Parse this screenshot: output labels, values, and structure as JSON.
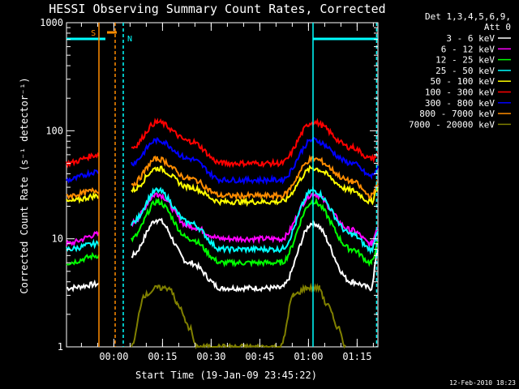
{
  "chart_data": {
    "type": "line",
    "title": "HESSI Observing Summary Count Rates, Corrected",
    "xlabel": "Start Time (19-Jan-09 23:45:22)",
    "ylabel": "Corrected Count Rate (s⁻¹ detector⁻¹)",
    "yscale": "log",
    "ylim": [
      1,
      1000
    ],
    "xlim_minutes": [
      0,
      96
    ],
    "y_ticks": [
      "1",
      "10",
      "100",
      "1000"
    ],
    "x_ticks": [
      {
        "label": "00:00",
        "minute": 14.6
      },
      {
        "label": "00:15",
        "minute": 29.6
      },
      {
        "label": "00:30",
        "minute": 44.6
      },
      {
        "label": "00:45",
        "minute": 59.6
      },
      {
        "label": "01:00",
        "minute": 74.6
      },
      {
        "label": "01:15",
        "minute": 89.6
      }
    ],
    "legend_header": [
      "Det 1,3,4,5,6,9,",
      "Att 0"
    ],
    "legend_position": "right-outside",
    "series": [
      {
        "name": "3 - 6 keV",
        "color": "#ffffff",
        "values": [
          [
            0,
            3.5
          ],
          [
            10,
            3.8
          ],
          [
            18,
            null
          ],
          [
            20,
            7
          ],
          [
            28,
            15
          ],
          [
            38,
            6
          ],
          [
            48,
            3.5
          ],
          [
            66,
            3.5
          ],
          [
            76,
            14
          ],
          [
            88,
            4
          ],
          [
            94,
            3.5
          ],
          [
            96,
            8
          ]
        ]
      },
      {
        "name": "6 - 12 keV",
        "color": "#ff00ff",
        "values": [
          [
            0,
            9
          ],
          [
            10,
            11
          ],
          [
            18,
            null
          ],
          [
            20,
            14
          ],
          [
            28,
            26
          ],
          [
            38,
            13
          ],
          [
            48,
            10
          ],
          [
            66,
            10
          ],
          [
            76,
            26
          ],
          [
            88,
            12
          ],
          [
            94,
            9
          ],
          [
            96,
            13
          ]
        ]
      },
      {
        "name": "12 - 25 keV",
        "color": "#00ff00",
        "values": [
          [
            0,
            6
          ],
          [
            10,
            7
          ],
          [
            18,
            null
          ],
          [
            20,
            10
          ],
          [
            28,
            22
          ],
          [
            38,
            10
          ],
          [
            48,
            6
          ],
          [
            66,
            6
          ],
          [
            76,
            22
          ],
          [
            88,
            8
          ],
          [
            94,
            6
          ],
          [
            96,
            9
          ]
        ]
      },
      {
        "name": "25 - 50 keV",
        "color": "#00ffff",
        "values": [
          [
            0,
            8
          ],
          [
            10,
            9
          ],
          [
            18,
            null
          ],
          [
            20,
            14
          ],
          [
            28,
            28
          ],
          [
            38,
            14
          ],
          [
            48,
            8
          ],
          [
            66,
            8
          ],
          [
            76,
            28
          ],
          [
            88,
            11
          ],
          [
            94,
            8
          ],
          [
            96,
            12
          ]
        ]
      },
      {
        "name": "50 - 100 keV",
        "color": "#ffff00",
        "values": [
          [
            0,
            22
          ],
          [
            10,
            25
          ],
          [
            18,
            null
          ],
          [
            20,
            28
          ],
          [
            28,
            45
          ],
          [
            38,
            30
          ],
          [
            48,
            22
          ],
          [
            66,
            22
          ],
          [
            76,
            45
          ],
          [
            88,
            28
          ],
          [
            94,
            22
          ],
          [
            96,
            30
          ]
        ]
      },
      {
        "name": "100 - 300 keV",
        "color": "#ff0000",
        "values": [
          [
            0,
            50
          ],
          [
            10,
            60
          ],
          [
            18,
            null
          ],
          [
            20,
            70
          ],
          [
            28,
            120
          ],
          [
            38,
            80
          ],
          [
            48,
            50
          ],
          [
            66,
            50
          ],
          [
            76,
            120
          ],
          [
            88,
            70
          ],
          [
            94,
            55
          ],
          [
            96,
            60
          ]
        ]
      },
      {
        "name": "300 - 800 keV",
        "color": "#0000ff",
        "values": [
          [
            0,
            35
          ],
          [
            10,
            42
          ],
          [
            18,
            null
          ],
          [
            20,
            50
          ],
          [
            28,
            82
          ],
          [
            38,
            55
          ],
          [
            48,
            35
          ],
          [
            66,
            35
          ],
          [
            76,
            82
          ],
          [
            88,
            50
          ],
          [
            94,
            38
          ],
          [
            96,
            45
          ]
        ]
      },
      {
        "name": "800 - 7000 keV",
        "color": "#ff8c00",
        "values": [
          [
            0,
            25
          ],
          [
            10,
            28
          ],
          [
            18,
            null
          ],
          [
            20,
            32
          ],
          [
            28,
            55
          ],
          [
            38,
            36
          ],
          [
            48,
            25
          ],
          [
            66,
            25
          ],
          [
            76,
            55
          ],
          [
            88,
            34
          ],
          [
            94,
            25
          ],
          [
            96,
            32
          ]
        ]
      },
      {
        "name": "7000 - 20000 keV",
        "color": "#808000",
        "values": [
          [
            20,
            1
          ],
          [
            24,
            3
          ],
          [
            28,
            3.5
          ],
          [
            32,
            3.5
          ],
          [
            34,
            2.5
          ],
          [
            38,
            1.5
          ],
          [
            40,
            1
          ],
          [
            66,
            1
          ],
          [
            70,
            3
          ],
          [
            74,
            3.5
          ],
          [
            78,
            3.5
          ],
          [
            80,
            2.5
          ],
          [
            84,
            1.5
          ],
          [
            86,
            1
          ]
        ]
      }
    ],
    "flags": [
      {
        "label": "S",
        "color": "#ff8c00"
      },
      {
        "label": "N",
        "color": "#00ffff"
      }
    ]
  },
  "footer": {
    "date": "12-Feb-2010 18:23"
  }
}
